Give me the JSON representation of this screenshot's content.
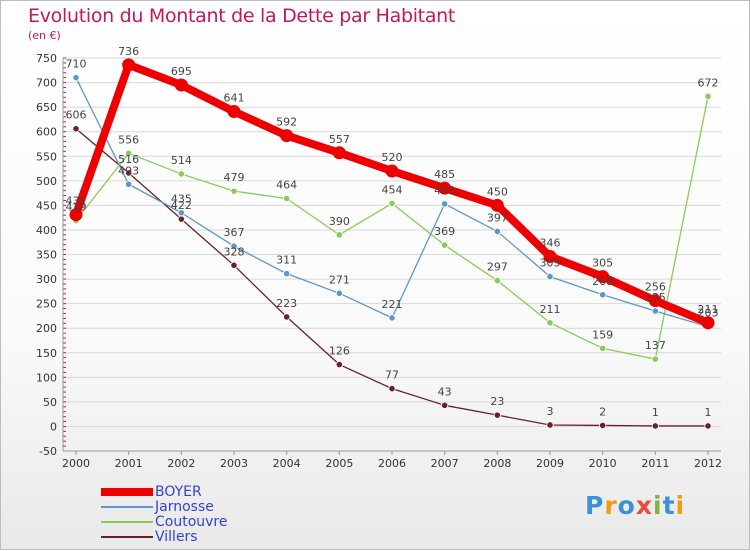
{
  "header": {
    "title": "Evolution du Montant de la Dette par Habitant",
    "subtitle": "(en €)"
  },
  "brand": {
    "text": "Proxiti",
    "letter_colors": [
      "#3d8fd8",
      "#f39c12",
      "#3d8fd8",
      "#e74c3c",
      "#7cb342",
      "#3d8fd8",
      "#f39c12"
    ]
  },
  "chart_data": {
    "type": "line",
    "title": "Evolution du Montant de la Dette par Habitant",
    "ylabel": "(en €)",
    "xlabel": "",
    "x": [
      "2000",
      "2001",
      "2002",
      "2003",
      "2004",
      "2005",
      "2006",
      "2007",
      "2008",
      "2009",
      "2010",
      "2011",
      "2012"
    ],
    "y_ticks": [
      -50,
      0,
      50,
      100,
      150,
      200,
      250,
      300,
      350,
      400,
      450,
      500,
      550,
      600,
      650,
      700,
      750
    ],
    "ylim": [
      -50,
      750
    ],
    "grid": "horizontal",
    "legend_position": "bottom-left",
    "series": [
      {
        "name": "BOYER",
        "color": "#ee0000",
        "values": [
          431,
          736,
          695,
          641,
          592,
          557,
          520,
          485,
          450,
          346,
          305,
          256,
          211
        ],
        "labels": [
          "431",
          "736",
          "695",
          "641",
          "592",
          "557",
          "520",
          "485",
          "450",
          "346",
          "305",
          "256",
          "211"
        ]
      },
      {
        "name": "Jarnosse",
        "color": "#5b97c9",
        "values": [
          710,
          493,
          435,
          367,
          311,
          271,
          221,
          453,
          397,
          305,
          268,
          235,
          203
        ],
        "labels": [
          "710",
          "493",
          "435",
          "367",
          "311",
          "271",
          "221",
          "453",
          "397",
          "305",
          "268",
          "235",
          "203"
        ]
      },
      {
        "name": "Coutouvre",
        "color": "#88cc55",
        "values": [
          419,
          556,
          514,
          479,
          464,
          390,
          454,
          369,
          297,
          211,
          159,
          137,
          672
        ],
        "labels": [
          "419",
          "556",
          "514",
          "479",
          "464",
          "390",
          "454",
          "369",
          "297",
          "211",
          "159",
          "137",
          "672"
        ]
      },
      {
        "name": "Villers",
        "color": "#6b1f2a",
        "values": [
          606,
          516,
          422,
          328,
          223,
          126,
          77,
          43,
          23,
          3,
          2,
          1,
          1
        ],
        "labels": [
          "606",
          "516",
          "422",
          "328",
          "223",
          "126",
          "77",
          "43",
          "23",
          "3",
          "2",
          "1",
          "1"
        ]
      }
    ]
  }
}
